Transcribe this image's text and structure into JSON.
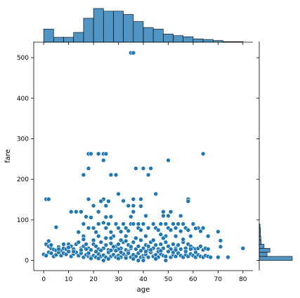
{
  "chart_data": {
    "type": "scatter",
    "title": "",
    "xlabel": "age",
    "ylabel": "fare",
    "xlim": [
      -4,
      84
    ],
    "ylim": [
      -25,
      540
    ],
    "xticks": [
      "0",
      "10",
      "20",
      "30",
      "40",
      "50",
      "60",
      "70",
      "80"
    ],
    "yticks": [
      "0",
      "100",
      "200",
      "300",
      "400",
      "500"
    ],
    "color": "#1f77b4",
    "grid": false,
    "marginal_x": {
      "type": "histogram",
      "bin_edges": [
        0,
        4,
        8,
        12,
        16,
        20,
        24,
        28,
        32,
        36,
        40,
        44,
        48,
        52,
        56,
        60,
        64,
        68,
        72,
        76,
        80
      ],
      "counts": [
        24,
        9,
        9,
        18,
        44,
        62,
        57,
        57,
        51,
        38,
        27,
        24,
        15,
        12,
        10,
        6,
        5,
        3,
        1,
        1
      ]
    },
    "marginal_y": {
      "type": "histogram",
      "bin_edges": [
        0,
        10,
        20,
        30,
        40,
        50,
        60,
        70,
        80,
        90
      ],
      "counts": [
        170,
        40,
        55,
        25,
        10,
        8,
        6,
        6,
        4
      ]
    },
    "points": [
      [
        35,
        512
      ],
      [
        36,
        512
      ],
      [
        18,
        263
      ],
      [
        19,
        263
      ],
      [
        22,
        263
      ],
      [
        24,
        263
      ],
      [
        25,
        263
      ],
      [
        64,
        263
      ],
      [
        24,
        247
      ],
      [
        50,
        247
      ],
      [
        40,
        227
      ],
      [
        43,
        227
      ],
      [
        18,
        227
      ],
      [
        37,
        227
      ],
      [
        16,
        211
      ],
      [
        27,
        211
      ],
      [
        29,
        211
      ],
      [
        42,
        211
      ],
      [
        1,
        151
      ],
      [
        2,
        151
      ],
      [
        18,
        151
      ],
      [
        24,
        151
      ],
      [
        36,
        151
      ],
      [
        39,
        151
      ],
      [
        58,
        151
      ],
      [
        58,
        146
      ],
      [
        30,
        164
      ],
      [
        45,
        164
      ],
      [
        23,
        146
      ],
      [
        26,
        146
      ],
      [
        32,
        147
      ],
      [
        20,
        135
      ],
      [
        25,
        135
      ],
      [
        34,
        135
      ],
      [
        36,
        135
      ],
      [
        39,
        134
      ],
      [
        13,
        120
      ],
      [
        15,
        120
      ],
      [
        22,
        120
      ],
      [
        36,
        120
      ],
      [
        48,
        120
      ],
      [
        51,
        120
      ],
      [
        11,
        120
      ],
      [
        17,
        108
      ],
      [
        19,
        106
      ],
      [
        25,
        107
      ],
      [
        27,
        108
      ],
      [
        35,
        108
      ],
      [
        41,
        110
      ],
      [
        48,
        110
      ],
      [
        50,
        110
      ],
      [
        55,
        110
      ],
      [
        5,
        82
      ],
      [
        16,
        90
      ],
      [
        22,
        90
      ],
      [
        24,
        93
      ],
      [
        26,
        90
      ],
      [
        29,
        90
      ],
      [
        32,
        90
      ],
      [
        35,
        90
      ],
      [
        36,
        90
      ],
      [
        38,
        90
      ],
      [
        40,
        90
      ],
      [
        44,
        90
      ],
      [
        47,
        90
      ],
      [
        49,
        90
      ],
      [
        52,
        90
      ],
      [
        54,
        90
      ],
      [
        56,
        90
      ],
      [
        60,
        90
      ],
      [
        62,
        80
      ],
      [
        18,
        80
      ],
      [
        20,
        80
      ],
      [
        25,
        80
      ],
      [
        30,
        80
      ],
      [
        33,
        80
      ],
      [
        38,
        80
      ],
      [
        42,
        80
      ],
      [
        45,
        80
      ],
      [
        50,
        80
      ],
      [
        53,
        80
      ],
      [
        57,
        80
      ],
      [
        61,
        79
      ],
      [
        64,
        80
      ],
      [
        14,
        70
      ],
      [
        21,
        70
      ],
      [
        27,
        70
      ],
      [
        31,
        71
      ],
      [
        34,
        73
      ],
      [
        39,
        75
      ],
      [
        46,
        75
      ],
      [
        51,
        75
      ],
      [
        55,
        72
      ],
      [
        58,
        75
      ],
      [
        63,
        72
      ],
      [
        70,
        71
      ],
      [
        47,
        64
      ],
      [
        16,
        60
      ],
      [
        22,
        60
      ],
      [
        28,
        60
      ],
      [
        33,
        60
      ],
      [
        41,
        60
      ],
      [
        49,
        60
      ],
      [
        53,
        60
      ],
      [
        59,
        60
      ],
      [
        66,
        60
      ],
      [
        71,
        49
      ],
      [
        71,
        34
      ],
      [
        80,
        30
      ],
      [
        74,
        8
      ],
      [
        70,
        8
      ],
      [
        1,
        40
      ],
      [
        2,
        35
      ],
      [
        3,
        30
      ],
      [
        4,
        27
      ],
      [
        5,
        25
      ],
      [
        6,
        33
      ],
      [
        7,
        25
      ],
      [
        8,
        30
      ],
      [
        9,
        28
      ],
      [
        10,
        40
      ],
      [
        11,
        35
      ],
      [
        12,
        28
      ],
      [
        13,
        40
      ],
      [
        14,
        45
      ],
      [
        15,
        30
      ],
      [
        16,
        35
      ],
      [
        17,
        40
      ],
      [
        18,
        30
      ],
      [
        19,
        26
      ],
      [
        20,
        40
      ],
      [
        21,
        35
      ],
      [
        22,
        28
      ],
      [
        23,
        45
      ],
      [
        24,
        30
      ],
      [
        25,
        38
      ],
      [
        26,
        26
      ],
      [
        27,
        42
      ],
      [
        28,
        30
      ],
      [
        29,
        35
      ],
      [
        30,
        40
      ],
      [
        31,
        30
      ],
      [
        32,
        45
      ],
      [
        33,
        26
      ],
      [
        34,
        38
      ],
      [
        35,
        30
      ],
      [
        36,
        45
      ],
      [
        37,
        28
      ],
      [
        38,
        35
      ],
      [
        39,
        50
      ],
      [
        40,
        30
      ],
      [
        41,
        38
      ],
      [
        42,
        26
      ],
      [
        43,
        45
      ],
      [
        44,
        30
      ],
      [
        45,
        38
      ],
      [
        46,
        28
      ],
      [
        47,
        40
      ],
      [
        48,
        30
      ],
      [
        49,
        45
      ],
      [
        50,
        35
      ],
      [
        51,
        28
      ],
      [
        52,
        40
      ],
      [
        53,
        30
      ],
      [
        54,
        38
      ],
      [
        55,
        28
      ],
      [
        56,
        45
      ],
      [
        57,
        30
      ],
      [
        58,
        40
      ],
      [
        59,
        35
      ],
      [
        60,
        30
      ],
      [
        61,
        28
      ],
      [
        62,
        30
      ],
      [
        63,
        35
      ],
      [
        64,
        26
      ],
      [
        65,
        30
      ],
      [
        66,
        28
      ],
      [
        0,
        15
      ],
      [
        1,
        12
      ],
      [
        2,
        20
      ],
      [
        3,
        18
      ],
      [
        4,
        10
      ],
      [
        5,
        14
      ],
      [
        6,
        20
      ],
      [
        7,
        12
      ],
      [
        8,
        18
      ],
      [
        9,
        15
      ],
      [
        10,
        22
      ],
      [
        11,
        10
      ],
      [
        12,
        16
      ],
      [
        13,
        20
      ],
      [
        14,
        12
      ],
      [
        15,
        18
      ],
      [
        16,
        8
      ],
      [
        17,
        14
      ],
      [
        18,
        10
      ],
      [
        19,
        8
      ],
      [
        20,
        12
      ],
      [
        21,
        8
      ],
      [
        22,
        16
      ],
      [
        23,
        10
      ],
      [
        24,
        13
      ],
      [
        25,
        8
      ],
      [
        26,
        20
      ],
      [
        27,
        10
      ],
      [
        28,
        14
      ],
      [
        29,
        8
      ],
      [
        30,
        12
      ],
      [
        31,
        8
      ],
      [
        32,
        16
      ],
      [
        33,
        10
      ],
      [
        34,
        22
      ],
      [
        35,
        8
      ],
      [
        36,
        14
      ],
      [
        37,
        10
      ],
      [
        38,
        18
      ],
      [
        39,
        8
      ],
      [
        40,
        12
      ],
      [
        41,
        15
      ],
      [
        42,
        8
      ],
      [
        43,
        20
      ],
      [
        44,
        10
      ],
      [
        45,
        14
      ],
      [
        46,
        8
      ],
      [
        47,
        16
      ],
      [
        48,
        12
      ],
      [
        49,
        10
      ],
      [
        50,
        22
      ],
      [
        51,
        8
      ],
      [
        52,
        14
      ],
      [
        53,
        10
      ],
      [
        54,
        18
      ],
      [
        55,
        12
      ],
      [
        56,
        8
      ],
      [
        57,
        14
      ],
      [
        58,
        10
      ],
      [
        59,
        16
      ],
      [
        60,
        12
      ],
      [
        61,
        8
      ],
      [
        62,
        14
      ],
      [
        63,
        10
      ],
      [
        64,
        8
      ],
      [
        65,
        12
      ],
      [
        66,
        10
      ],
      [
        67,
        8
      ],
      [
        19,
        5
      ],
      [
        22,
        5
      ],
      [
        26,
        4
      ],
      [
        30,
        5
      ],
      [
        33,
        6
      ],
      [
        36,
        4
      ],
      [
        40,
        5
      ],
      [
        45,
        4
      ],
      [
        24,
        0
      ],
      [
        38,
        0
      ],
      [
        40,
        0
      ],
      [
        49,
        0
      ],
      [
        18,
        18
      ],
      [
        21,
        22
      ],
      [
        27,
        25
      ],
      [
        31,
        20
      ],
      [
        34,
        18
      ],
      [
        39,
        24
      ],
      [
        43,
        26
      ],
      [
        46,
        22
      ],
      [
        52,
        20
      ],
      [
        57,
        22
      ],
      [
        61,
        20
      ],
      [
        28,
        34
      ],
      [
        31,
        50
      ],
      [
        25,
        55
      ],
      [
        20,
        50
      ],
      [
        16,
        52
      ],
      [
        30,
        28
      ],
      [
        42,
        35
      ],
      [
        44,
        50
      ],
      [
        23,
        25
      ],
      [
        27,
        55
      ],
      [
        33,
        48
      ],
      [
        37,
        55
      ],
      [
        48,
        55
      ],
      [
        56,
        52
      ],
      [
        10,
        32
      ],
      [
        12,
        22
      ],
      [
        8,
        40
      ],
      [
        3,
        38
      ],
      [
        2,
        48
      ],
      [
        6,
        28
      ],
      [
        15,
        26
      ],
      [
        17,
        28
      ],
      [
        29,
        24
      ],
      [
        35,
        34
      ],
      [
        41,
        22
      ],
      [
        47,
        24
      ],
      [
        53,
        26
      ],
      [
        59,
        28
      ]
    ]
  }
}
